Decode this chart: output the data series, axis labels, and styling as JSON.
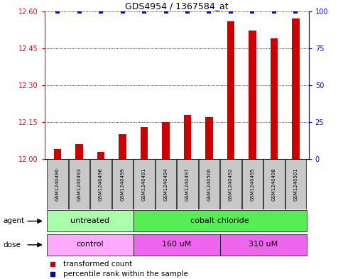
{
  "title": "GDS4954 / 1367584_at",
  "samples": [
    "GSM1240490",
    "GSM1240493",
    "GSM1240496",
    "GSM1240499",
    "GSM1240491",
    "GSM1240494",
    "GSM1240497",
    "GSM1240500",
    "GSM1240492",
    "GSM1240495",
    "GSM1240498",
    "GSM1240501"
  ],
  "transformed_counts": [
    12.04,
    12.06,
    12.03,
    12.1,
    12.13,
    12.15,
    12.18,
    12.17,
    12.56,
    12.52,
    12.49,
    12.57
  ],
  "percentile_ranks": [
    100,
    100,
    100,
    100,
    100,
    100,
    100,
    100,
    100,
    100,
    100,
    100
  ],
  "ylim_left": [
    12.0,
    12.6
  ],
  "ylim_right": [
    0,
    100
  ],
  "yticks_left": [
    12.0,
    12.15,
    12.3,
    12.45,
    12.6
  ],
  "yticks_right": [
    0,
    25,
    50,
    75,
    100
  ],
  "bar_color": "#cc0000",
  "dot_color": "#0000cc",
  "agent_labels": [
    {
      "label": "untreated",
      "start": 0,
      "end": 4,
      "color": "#aaffaa"
    },
    {
      "label": "cobalt chloride",
      "start": 4,
      "end": 12,
      "color": "#55ee55"
    }
  ],
  "dose_labels": [
    {
      "label": "control",
      "start": 0,
      "end": 4,
      "color": "#ffaaff"
    },
    {
      "label": "160 uM",
      "start": 4,
      "end": 8,
      "color": "#ee66ee"
    },
    {
      "label": "310 uM",
      "start": 8,
      "end": 12,
      "color": "#ee66ee"
    }
  ],
  "legend_items": [
    {
      "label": "transformed count",
      "color": "#cc0000"
    },
    {
      "label": "percentile rank within the sample",
      "color": "#0000cc"
    }
  ],
  "bg_color": "#ffffff",
  "sample_bg_color": "#c8c8c8",
  "bar_width": 0.35
}
